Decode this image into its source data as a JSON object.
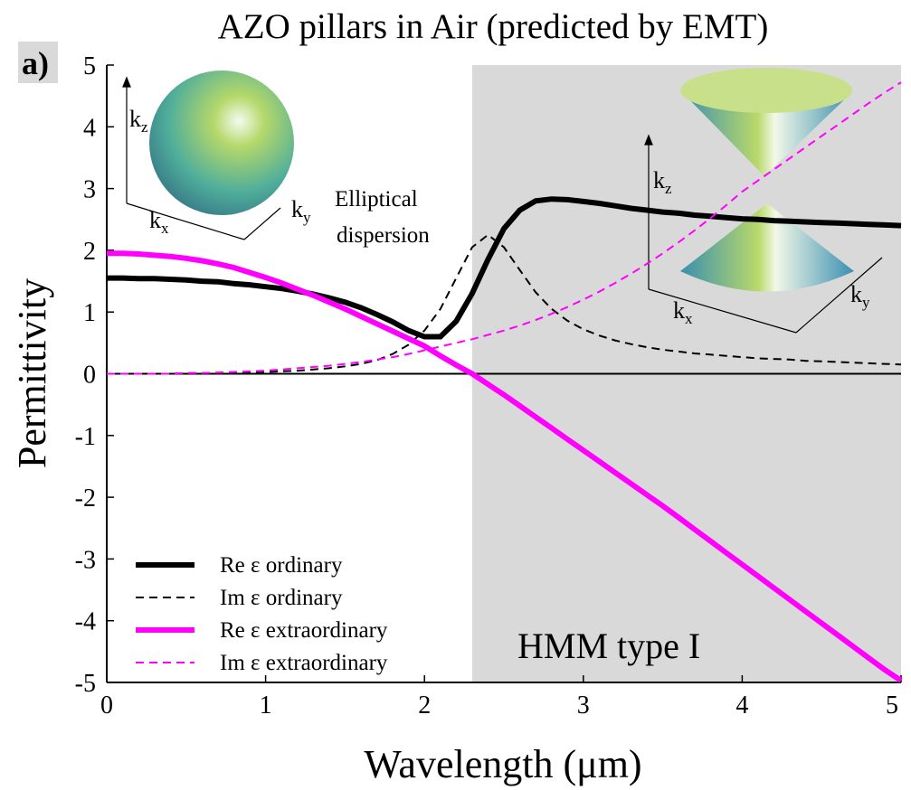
{
  "chart_data": {
    "type": "line",
    "title": "AZO pillars in Air (predicted by EMT)",
    "panel_label": "a)",
    "xlabel": "Wavelength (μm)",
    "ylabel": "Permittivity",
    "annotations": {
      "elliptical": [
        "Elliptical",
        "dispersion"
      ],
      "hmm": "HMM type I"
    },
    "inset_labels": [
      {
        "base": "k",
        "sub": "z"
      },
      {
        "base": "k",
        "sub": "x"
      },
      {
        "base": "k",
        "sub": "y"
      },
      {
        "base": "k",
        "sub": "z"
      },
      {
        "base": "k",
        "sub": "x"
      },
      {
        "base": "k",
        "sub": "y"
      }
    ],
    "shaded_region": [
      2.3,
      5
    ],
    "hlines": [
      0
    ],
    "xlim": [
      0,
      5
    ],
    "ylim": [
      -5,
      5
    ],
    "xticks": [
      0,
      1,
      2,
      3,
      4,
      5
    ],
    "yticks": [
      -5,
      -4,
      -3,
      -2,
      -1,
      0,
      1,
      2,
      3,
      4,
      5
    ],
    "legend": "lower left",
    "x": [
      0,
      0.1,
      0.2,
      0.3,
      0.4,
      0.5,
      0.6,
      0.7,
      0.8,
      0.9,
      1.0,
      1.1,
      1.2,
      1.3,
      1.4,
      1.5,
      1.6,
      1.7,
      1.8,
      1.9,
      2.0,
      2.1,
      2.2,
      2.3,
      2.4,
      2.5,
      2.6,
      2.7,
      2.8,
      2.9,
      3.0,
      3.1,
      3.2,
      3.3,
      3.4,
      3.5,
      3.6,
      3.7,
      3.8,
      3.9,
      4.0,
      4.1,
      4.2,
      4.3,
      4.4,
      4.5,
      4.6,
      4.7,
      4.8,
      4.9,
      5.0
    ],
    "series": [
      {
        "name": "Re ε ordinary",
        "color": "#000000",
        "style": "solid",
        "width": 6,
        "values": [
          1.55,
          1.55,
          1.54,
          1.54,
          1.53,
          1.52,
          1.5,
          1.49,
          1.46,
          1.44,
          1.41,
          1.38,
          1.34,
          1.29,
          1.23,
          1.16,
          1.07,
          0.96,
          0.84,
          0.7,
          0.6,
          0.6,
          0.85,
          1.3,
          1.85,
          2.35,
          2.65,
          2.8,
          2.83,
          2.82,
          2.79,
          2.76,
          2.72,
          2.68,
          2.65,
          2.62,
          2.6,
          2.57,
          2.55,
          2.53,
          2.51,
          2.5,
          2.48,
          2.47,
          2.46,
          2.45,
          2.44,
          2.43,
          2.42,
          2.41,
          2.4
        ]
      },
      {
        "name": "Im ε ordinary",
        "color": "#000000",
        "style": "dashed",
        "width": 2,
        "values": [
          0,
          0,
          0,
          0,
          0,
          0.01,
          0.01,
          0.01,
          0.02,
          0.02,
          0.03,
          0.04,
          0.05,
          0.07,
          0.09,
          0.12,
          0.16,
          0.22,
          0.32,
          0.47,
          0.7,
          1.05,
          1.55,
          2.05,
          2.25,
          2.05,
          1.68,
          1.32,
          1.05,
          0.86,
          0.72,
          0.62,
          0.54,
          0.48,
          0.43,
          0.39,
          0.36,
          0.33,
          0.31,
          0.29,
          0.27,
          0.25,
          0.24,
          0.23,
          0.21,
          0.2,
          0.19,
          0.18,
          0.17,
          0.16,
          0.15
        ]
      },
      {
        "name": "Re ε extraordinary",
        "color": "#ff00ff",
        "style": "solid",
        "width": 6,
        "values": [
          1.95,
          1.95,
          1.94,
          1.92,
          1.9,
          1.87,
          1.83,
          1.78,
          1.72,
          1.64,
          1.56,
          1.47,
          1.37,
          1.27,
          1.16,
          1.05,
          0.93,
          0.81,
          0.69,
          0.57,
          0.45,
          0.29,
          0.14,
          0,
          -0.17,
          -0.34,
          -0.52,
          -0.7,
          -0.88,
          -1.06,
          -1.24,
          -1.42,
          -1.6,
          -1.78,
          -1.96,
          -2.14,
          -2.33,
          -2.52,
          -2.71,
          -2.9,
          -3.09,
          -3.28,
          -3.47,
          -3.66,
          -3.85,
          -4.04,
          -4.23,
          -4.42,
          -4.61,
          -4.8,
          -4.97
        ]
      },
      {
        "name": "Im ε extraordinary",
        "color": "#ff00ff",
        "style": "dashed",
        "width": 2,
        "values": [
          0,
          0,
          0,
          0,
          0,
          0.01,
          0.01,
          0.02,
          0.03,
          0.04,
          0.05,
          0.07,
          0.09,
          0.11,
          0.13,
          0.16,
          0.19,
          0.23,
          0.27,
          0.32,
          0.38,
          0.44,
          0.5,
          0.56,
          0.63,
          0.7,
          0.78,
          0.87,
          0.97,
          1.08,
          1.2,
          1.33,
          1.47,
          1.62,
          1.78,
          1.95,
          2.13,
          2.32,
          2.52,
          2.73,
          2.95,
          3.13,
          3.31,
          3.49,
          3.67,
          3.85,
          4.03,
          4.21,
          4.39,
          4.56,
          4.72
        ]
      }
    ]
  }
}
